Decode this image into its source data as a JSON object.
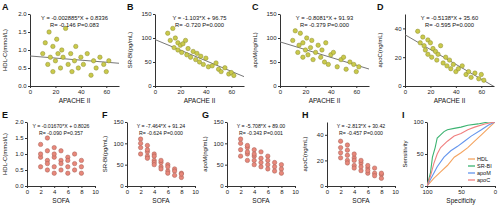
{
  "chart_data": [
    {
      "type": "scatter",
      "title": "A",
      "x_label": "APACHE II",
      "y_label": "HDL-C(mmol/L)",
      "xlim": [
        0,
        70
      ],
      "xticks": [
        0,
        20,
        40,
        60
      ],
      "ylim": [
        0,
        2
      ],
      "yticks": [
        {
          "value": 0,
          "label": "0.0"
        },
        {
          "value": 0.5,
          "label": "0.5"
        },
        {
          "value": 1,
          "label": "1.0"
        },
        {
          "value": 1.5,
          "label": "1.5"
        },
        {
          "value": 2,
          "label": "2.0"
        }
      ],
      "color": "#c9c94a",
      "marker": "circle",
      "annotations": [
        "Y = -0.002885*X + 0.8336",
        "R= -0.146 P=0.083"
      ],
      "fit": {
        "slope": -0.002885,
        "intercept": 0.8336
      },
      "x": [
        10,
        12,
        14,
        15,
        16,
        18,
        18,
        20,
        21,
        22,
        24,
        25,
        26,
        28,
        30,
        32,
        33,
        35,
        36,
        38,
        40,
        42,
        45,
        48,
        50,
        52,
        55,
        58,
        60,
        62
      ],
      "values": [
        0.9,
        1.2,
        0.6,
        1.5,
        0.8,
        0.4,
        1.1,
        0.7,
        1.3,
        0.9,
        0.5,
        1.0,
        0.8,
        1.6,
        0.6,
        0.9,
        0.4,
        0.7,
        1.1,
        0.5,
        0.8,
        0.6,
        0.9,
        0.3,
        0.7,
        0.5,
        0.8,
        0.6,
        0.4,
        0.7
      ]
    },
    {
      "type": "scatter",
      "title": "B",
      "x_label": "APACHE II",
      "y_label": "SR-BI(pg/mL)",
      "xlim": [
        0,
        70
      ],
      "xticks": [
        0,
        20,
        40,
        60
      ],
      "ylim": [
        0,
        150
      ],
      "yticks": [
        0,
        50,
        100,
        150
      ],
      "color": "#c9c94a",
      "marker": "circle",
      "annotations": [
        "Y = -1.103*X + 96.75",
        "R= -0.720 P=0.000"
      ],
      "fit": {
        "slope": -1.103,
        "intercept": 96.75
      },
      "x": [
        10,
        12,
        14,
        15,
        16,
        18,
        18,
        20,
        21,
        22,
        24,
        25,
        26,
        28,
        30,
        32,
        33,
        35,
        36,
        38,
        40,
        42,
        45,
        48,
        50,
        52,
        55,
        58,
        60,
        62
      ],
      "values": [
        110,
        95,
        120,
        80,
        100,
        75,
        90,
        85,
        70,
        88,
        95,
        65,
        78,
        60,
        72,
        55,
        68,
        50,
        62,
        45,
        58,
        40,
        42,
        48,
        35,
        30,
        38,
        25,
        28,
        22
      ]
    },
    {
      "type": "scatter",
      "title": "C",
      "x_label": "APACHE II",
      "y_label": "apoM(ng/mL)",
      "xlim": [
        0,
        70
      ],
      "xticks": [
        0,
        20,
        40,
        60
      ],
      "ylim": [
        0,
        150
      ],
      "yticks": [
        0,
        50,
        100,
        150
      ],
      "color": "#c9c94a",
      "marker": "circle",
      "annotations": [
        "Y = -0.8081*X + 91.93",
        "R= -0.379 P=0.000"
      ],
      "fit": {
        "slope": -0.8081,
        "intercept": 91.93
      },
      "x": [
        10,
        12,
        14,
        15,
        16,
        18,
        18,
        20,
        21,
        22,
        24,
        25,
        26,
        28,
        30,
        32,
        33,
        35,
        36,
        38,
        40,
        42,
        45,
        48,
        50,
        52,
        55,
        58,
        60,
        62
      ],
      "values": [
        95,
        115,
        70,
        85,
        110,
        60,
        90,
        75,
        100,
        65,
        80,
        95,
        55,
        70,
        85,
        60,
        75,
        50,
        90,
        45,
        65,
        70,
        40,
        55,
        60,
        35,
        50,
        45,
        30,
        40
      ]
    },
    {
      "type": "scatter",
      "title": "D",
      "x_label": "APACHE II",
      "y_label": "apoC(ng/mL)",
      "xlim": [
        0,
        70
      ],
      "xticks": [
        0,
        20,
        40,
        60
      ],
      "ylim": [
        0,
        50
      ],
      "yticks": [
        0,
        20,
        40
      ],
      "color": "#c9c94a",
      "marker": "circle",
      "annotations": [
        "Y = -0.5138*X + 35.60",
        "R= -0.595 P=0.000"
      ],
      "fit": {
        "slope": -0.5138,
        "intercept": 35.6
      },
      "x": [
        10,
        12,
        14,
        15,
        16,
        18,
        18,
        20,
        21,
        22,
        24,
        25,
        26,
        28,
        30,
        32,
        33,
        35,
        36,
        38,
        40,
        42,
        45,
        48,
        50,
        52,
        55,
        58,
        60,
        62
      ],
      "values": [
        38,
        30,
        34,
        28,
        25,
        32,
        22,
        30,
        20,
        26,
        24,
        18,
        22,
        28,
        16,
        20,
        14,
        18,
        12,
        15,
        10,
        12,
        14,
        8,
        10,
        6,
        9,
        5,
        8,
        4
      ]
    },
    {
      "type": "scatter",
      "title": "E",
      "x_label": "SOFA",
      "y_label": "HDL-C(mmol/L)",
      "xlim": [
        0,
        10
      ],
      "xticks": [
        0,
        2,
        4,
        6,
        8,
        10
      ],
      "ylim": [
        0,
        2
      ],
      "yticks": [
        {
          "value": 0,
          "label": "0.0"
        },
        {
          "value": 0.5,
          "label": "0.5"
        },
        {
          "value": 1,
          "label": "1.0"
        },
        {
          "value": 1.5,
          "label": "1.5"
        },
        {
          "value": 2,
          "label": "2.0"
        }
      ],
      "color": "#e8877a",
      "marker": "circle",
      "annotations": [
        "Y = -0.01670*X + 0.8026",
        "R= -0.090 P=0.357"
      ],
      "x": [
        2,
        2,
        2,
        2,
        3,
        3,
        3,
        3,
        3,
        4,
        4,
        4,
        4,
        4,
        5,
        5,
        5,
        5,
        6,
        6,
        6,
        6,
        7,
        7,
        7,
        8,
        8,
        8
      ],
      "values": [
        0.9,
        1.3,
        0.6,
        1.0,
        0.8,
        1.5,
        0.5,
        1.1,
        0.7,
        0.9,
        1.2,
        0.6,
        0.4,
        1.0,
        0.8,
        0.5,
        1.1,
        0.7,
        0.6,
        0.9,
        0.4,
        0.8,
        0.7,
        0.5,
        1.0,
        0.6,
        0.4,
        0.8
      ]
    },
    {
      "type": "scatter",
      "title": "F",
      "x_label": "SOFA",
      "y_label": "SR-BI(pg/mL)",
      "xlim": [
        0,
        10
      ],
      "xticks": [
        0,
        2,
        4,
        6,
        8,
        10
      ],
      "ylim": [
        0,
        150
      ],
      "yticks": [
        0,
        50,
        100,
        150
      ],
      "color": "#e8877a",
      "marker": "circle",
      "annotations": [
        "Y = -7.464*X + 91.24",
        "R= -0.624 P=0.000"
      ],
      "x": [
        2,
        2,
        2,
        2,
        3,
        3,
        3,
        3,
        3,
        4,
        4,
        4,
        4,
        4,
        5,
        5,
        5,
        5,
        6,
        6,
        6,
        6,
        7,
        7,
        7,
        8,
        8,
        8
      ],
      "values": [
        110,
        90,
        75,
        100,
        95,
        70,
        80,
        65,
        85,
        60,
        75,
        55,
        70,
        50,
        55,
        45,
        60,
        40,
        50,
        35,
        45,
        30,
        40,
        35,
        25,
        30,
        20,
        28
      ]
    },
    {
      "type": "scatter",
      "title": "G",
      "x_label": "SOFA",
      "y_label": "apoM(ng/mL)",
      "xlim": [
        0,
        10
      ],
      "xticks": [
        0,
        2,
        4,
        6,
        8,
        10
      ],
      "ylim": [
        0,
        150
      ],
      "yticks": [
        0,
        50,
        100,
        150
      ],
      "color": "#e8877a",
      "marker": "circle",
      "annotations": [
        "Y = -5.708*X + 89.00",
        "R= -0.343 P=0.001"
      ],
      "x": [
        2,
        2,
        2,
        2,
        3,
        3,
        3,
        3,
        3,
        4,
        4,
        4,
        4,
        4,
        5,
        5,
        5,
        5,
        6,
        6,
        6,
        6,
        7,
        7,
        7,
        8,
        8,
        8
      ],
      "values": [
        100,
        85,
        70,
        110,
        90,
        75,
        60,
        95,
        80,
        70,
        85,
        60,
        50,
        75,
        65,
        80,
        55,
        45,
        70,
        50,
        60,
        40,
        55,
        45,
        35,
        50,
        40,
        30
      ]
    },
    {
      "type": "scatter",
      "title": "H",
      "x_label": "SOFA",
      "y_label": "apoC(ng/mL)",
      "xlim": [
        0,
        10
      ],
      "xticks": [
        0,
        2,
        4,
        6,
        8,
        10
      ],
      "ylim": [
        0,
        50
      ],
      "yticks": [
        0,
        20,
        40
      ],
      "color": "#e8877a",
      "marker": "circle",
      "annotations": [
        "Y = -2.813*X + 30.42",
        "R= -0.457 P=0.000"
      ],
      "x": [
        2,
        2,
        2,
        2,
        3,
        3,
        3,
        3,
        3,
        4,
        4,
        4,
        4,
        4,
        5,
        5,
        5,
        5,
        6,
        6,
        6,
        6,
        7,
        7,
        7,
        8,
        8,
        8
      ],
      "values": [
        30,
        35,
        22,
        26,
        28,
        20,
        24,
        32,
        18,
        22,
        16,
        25,
        20,
        14,
        18,
        12,
        20,
        15,
        14,
        10,
        16,
        12,
        10,
        8,
        14,
        9,
        6,
        10
      ]
    },
    {
      "type": "line",
      "title": "I",
      "x_label": "Specificity",
      "y_label": "Sensitivity",
      "xlim": [
        100,
        0
      ],
      "xticks": [
        100,
        50,
        0
      ],
      "ylim": [
        0,
        100
      ],
      "yticks": [
        0,
        50,
        100
      ],
      "legend": "lower right",
      "series": [
        {
          "name": "HDL",
          "color": "#f4a460",
          "x": [
            100,
            90,
            80,
            70,
            60,
            50,
            40,
            30,
            20,
            10,
            0
          ],
          "values": [
            0,
            12,
            22,
            32,
            45,
            52,
            60,
            70,
            80,
            90,
            100
          ]
        },
        {
          "name": "SR-BI",
          "color": "#3cb371",
          "x": [
            100,
            95,
            92,
            88,
            85,
            80,
            75,
            70,
            60,
            50,
            40,
            25,
            10,
            0
          ],
          "values": [
            0,
            20,
            45,
            60,
            75,
            80,
            85,
            88,
            90,
            92,
            95,
            97,
            100,
            100
          ]
        },
        {
          "name": "apoM",
          "color": "#6495ed",
          "x": [
            100,
            95,
            90,
            85,
            75,
            65,
            55,
            45,
            35,
            20,
            10,
            0
          ],
          "values": [
            0,
            10,
            20,
            30,
            45,
            55,
            62,
            70,
            78,
            88,
            95,
            100
          ]
        },
        {
          "name": "apoC",
          "color": "#f08080",
          "x": [
            100,
            95,
            90,
            85,
            80,
            70,
            60,
            50,
            40,
            30,
            15,
            0
          ],
          "values": [
            0,
            15,
            35,
            50,
            60,
            70,
            78,
            82,
            88,
            92,
            97,
            100
          ]
        }
      ]
    }
  ]
}
